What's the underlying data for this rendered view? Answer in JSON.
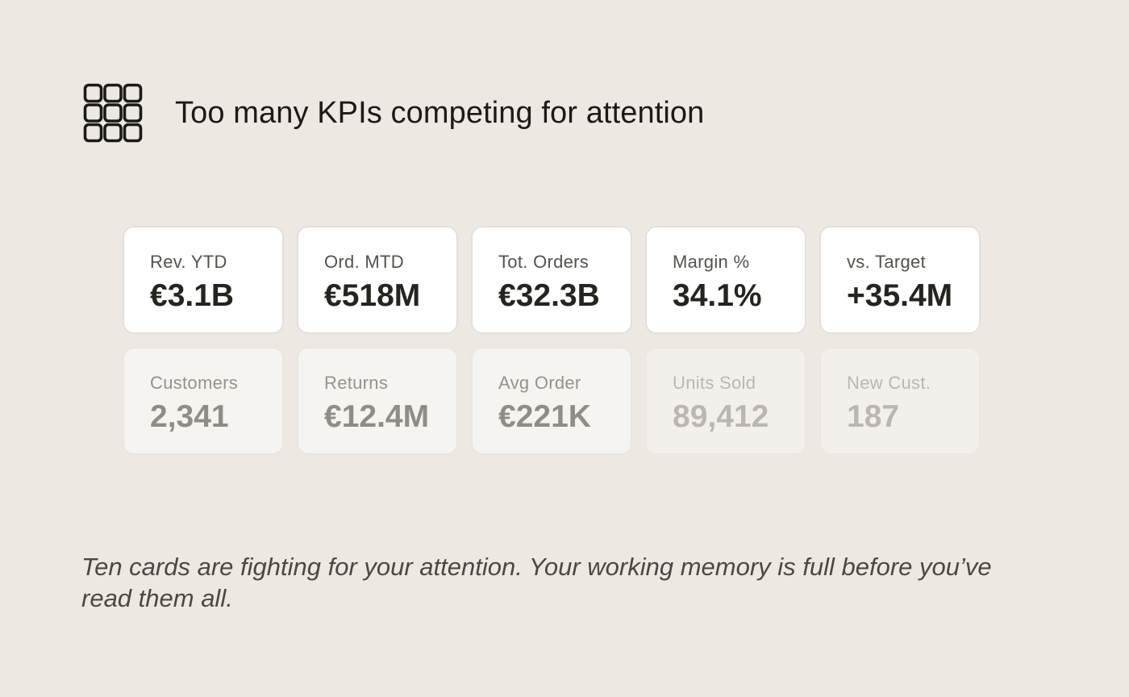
{
  "header": {
    "icon": "grid-icon",
    "title": "Too many KPIs competing for attention"
  },
  "cards": [
    {
      "label": "Rev. YTD",
      "value": "€3.1B"
    },
    {
      "label": "Ord. MTD",
      "value": "€518M"
    },
    {
      "label": "Tot. Orders",
      "value": "€32.3B"
    },
    {
      "label": "Margin %",
      "value": "34.1%"
    },
    {
      "label": "vs. Target",
      "value": "+35.4M"
    },
    {
      "label": "Customers",
      "value": "2,341"
    },
    {
      "label": "Returns",
      "value": "€12.4M"
    },
    {
      "label": "Avg Order",
      "value": "€221K"
    },
    {
      "label": "Units Sold",
      "value": "89,412"
    },
    {
      "label": "New Cust.",
      "value": "187"
    }
  ],
  "caption": "Ten cards are fighting for your attention. Your working memory is full before you’ve read them all.",
  "colors": {
    "background": "#ede9e2",
    "card_primary": "#ffffff",
    "card_muted": "#f6f4f0",
    "card_faded": "#f3f0eb",
    "text_dark": "#1c1a18"
  }
}
